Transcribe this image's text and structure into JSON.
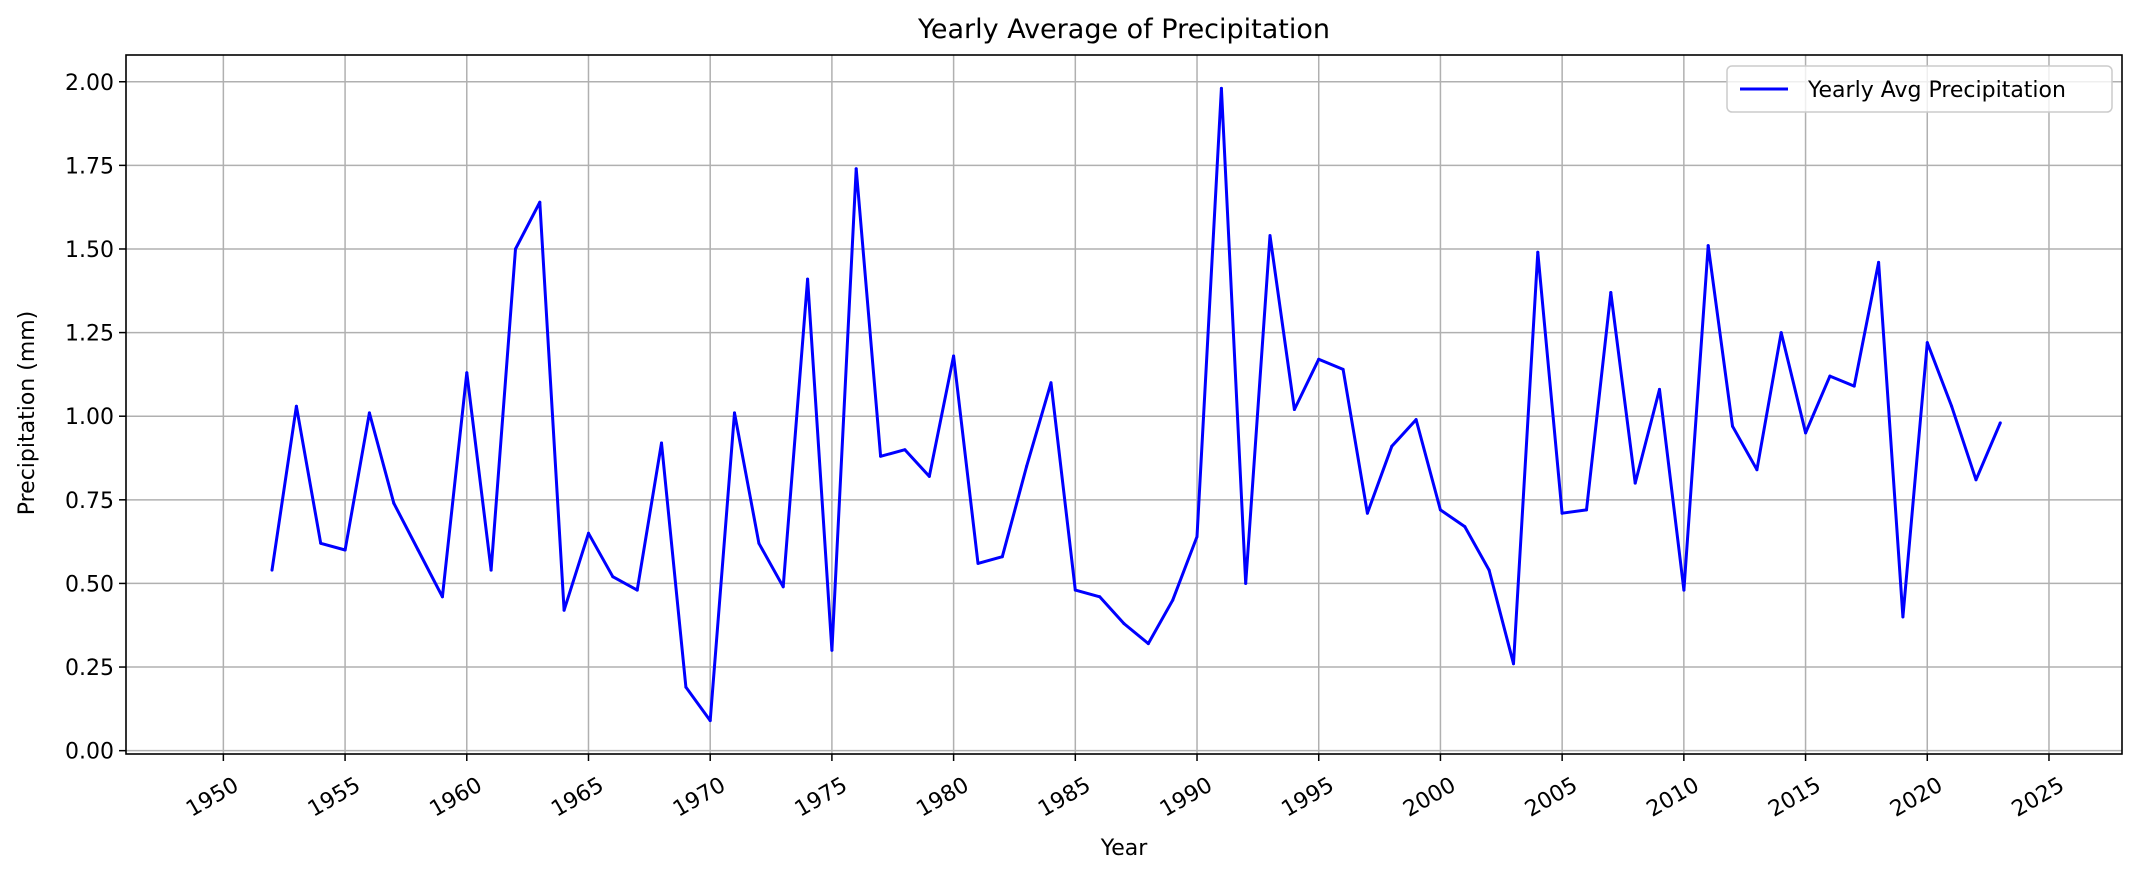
{
  "chart_data": {
    "type": "line",
    "title": "Yearly Average of Precipitation",
    "xlabel": "Year",
    "ylabel": "Precipitation (mm)",
    "xlim": [
      1946,
      2028
    ],
    "ylim": [
      -0.01,
      2.08
    ],
    "xticks": [
      "1950",
      "1955",
      "1960",
      "1965",
      "1970",
      "1975",
      "1980",
      "1985",
      "1990",
      "1995",
      "2000",
      "2005",
      "2010",
      "2015",
      "2020",
      "2025"
    ],
    "yticks": [
      "0.00",
      "0.25",
      "0.50",
      "0.75",
      "1.00",
      "1.25",
      "1.50",
      "1.75",
      "2.00"
    ],
    "grid": true,
    "legend_position": "top-right",
    "series": [
      {
        "name": "Yearly Avg Precipitation",
        "color": "#0000ff",
        "x": [
          1952,
          1953,
          1954,
          1955,
          1956,
          1957,
          1958,
          1959,
          1960,
          1961,
          1962,
          1963,
          1964,
          1965,
          1966,
          1967,
          1968,
          1969,
          1970,
          1971,
          1972,
          1973,
          1974,
          1975,
          1976,
          1977,
          1978,
          1979,
          1980,
          1981,
          1982,
          1983,
          1984,
          1985,
          1986,
          1987,
          1988,
          1989,
          1990,
          1991,
          1992,
          1993,
          1994,
          1995,
          1996,
          1997,
          1998,
          1999,
          2000,
          2001,
          2002,
          2003,
          2004,
          2005,
          2006,
          2007,
          2008,
          2009,
          2010,
          2011,
          2012,
          2013,
          2014,
          2015,
          2016,
          2017,
          2018,
          2019,
          2020,
          2021,
          2022,
          2023
        ],
        "values": [
          0.54,
          1.03,
          0.62,
          0.6,
          1.01,
          0.74,
          0.6,
          0.46,
          1.13,
          0.54,
          1.5,
          1.64,
          0.42,
          0.65,
          0.52,
          0.48,
          0.92,
          0.19,
          0.09,
          1.01,
          0.62,
          0.49,
          1.41,
          0.3,
          1.74,
          0.88,
          0.9,
          0.82,
          1.18,
          0.56,
          0.58,
          0.85,
          1.1,
          0.48,
          0.46,
          0.38,
          0.32,
          0.45,
          0.64,
          1.98,
          0.5,
          1.54,
          1.02,
          1.17,
          1.14,
          0.71,
          0.91,
          0.99,
          0.72,
          0.67,
          0.54,
          0.26,
          1.49,
          0.71,
          0.72,
          1.37,
          0.8,
          1.08,
          0.48,
          1.51,
          0.97,
          0.84,
          1.25,
          0.95,
          1.12,
          1.09,
          1.46,
          0.4,
          1.22,
          1.03,
          0.81,
          0.98
        ]
      }
    ]
  }
}
